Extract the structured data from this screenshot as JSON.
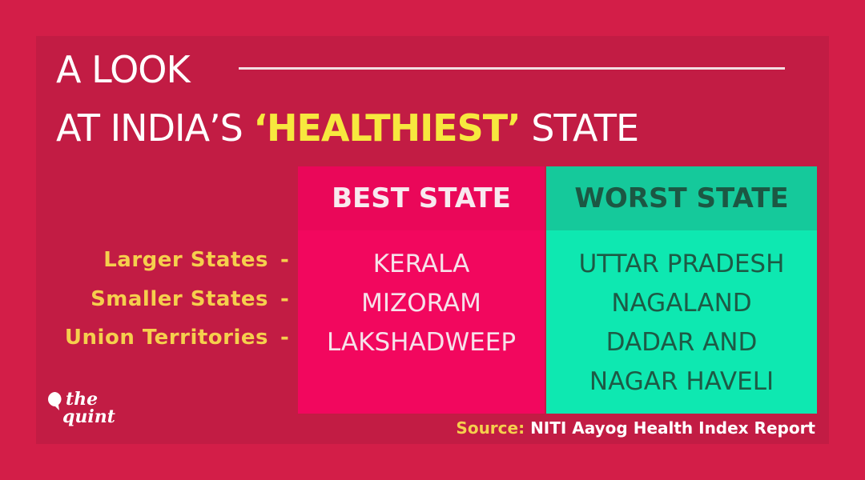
{
  "title": {
    "line1": "A LOOK",
    "line2_start": "AT INDIA’S",
    "highlight": "‘HEALTHIEST’",
    "line2_end": "STATE"
  },
  "row_labels": [
    "Larger States",
    "Smaller States",
    "Union Territories"
  ],
  "separator": "-",
  "columns": [
    {
      "header": "BEST STATE",
      "entries": [
        "KERALA",
        "MIZORAM",
        "LAKSHADWEEP"
      ]
    },
    {
      "header": "WORST STATE",
      "entries": [
        "UTTAR PRADESH",
        "NAGALAND",
        "DADAR AND NAGAR HAVELI"
      ]
    }
  ],
  "source": {
    "label": "Source:",
    "text": "NITI Aayog Health Index Report"
  },
  "logo": {
    "line1": "the",
    "line2": "quint"
  }
}
